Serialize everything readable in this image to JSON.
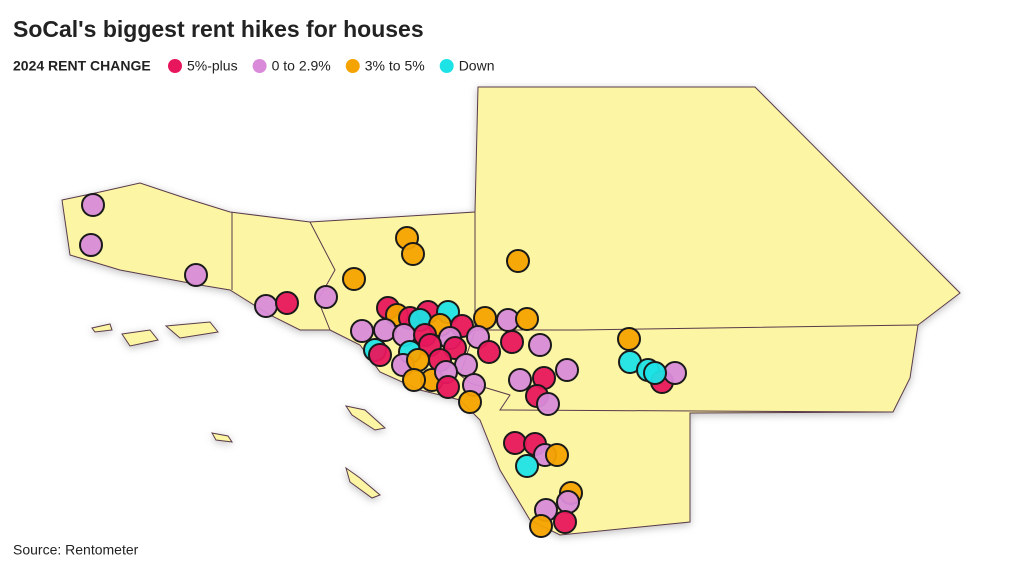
{
  "header": {
    "title": "SoCal's biggest rent hikes for houses"
  },
  "legend": {
    "label": "2024 RENT CHANGE",
    "items": [
      {
        "name": "5%-plus",
        "color": "#e8175d"
      },
      {
        "name": "0 to 2.9%",
        "color": "#d98bd9"
      },
      {
        "name": "3% to 5%",
        "color": "#f5a300"
      },
      {
        "name": "Down",
        "color": "#1ee3e6"
      }
    ]
  },
  "footer": {
    "source": "Source: Rentometer"
  }
}
